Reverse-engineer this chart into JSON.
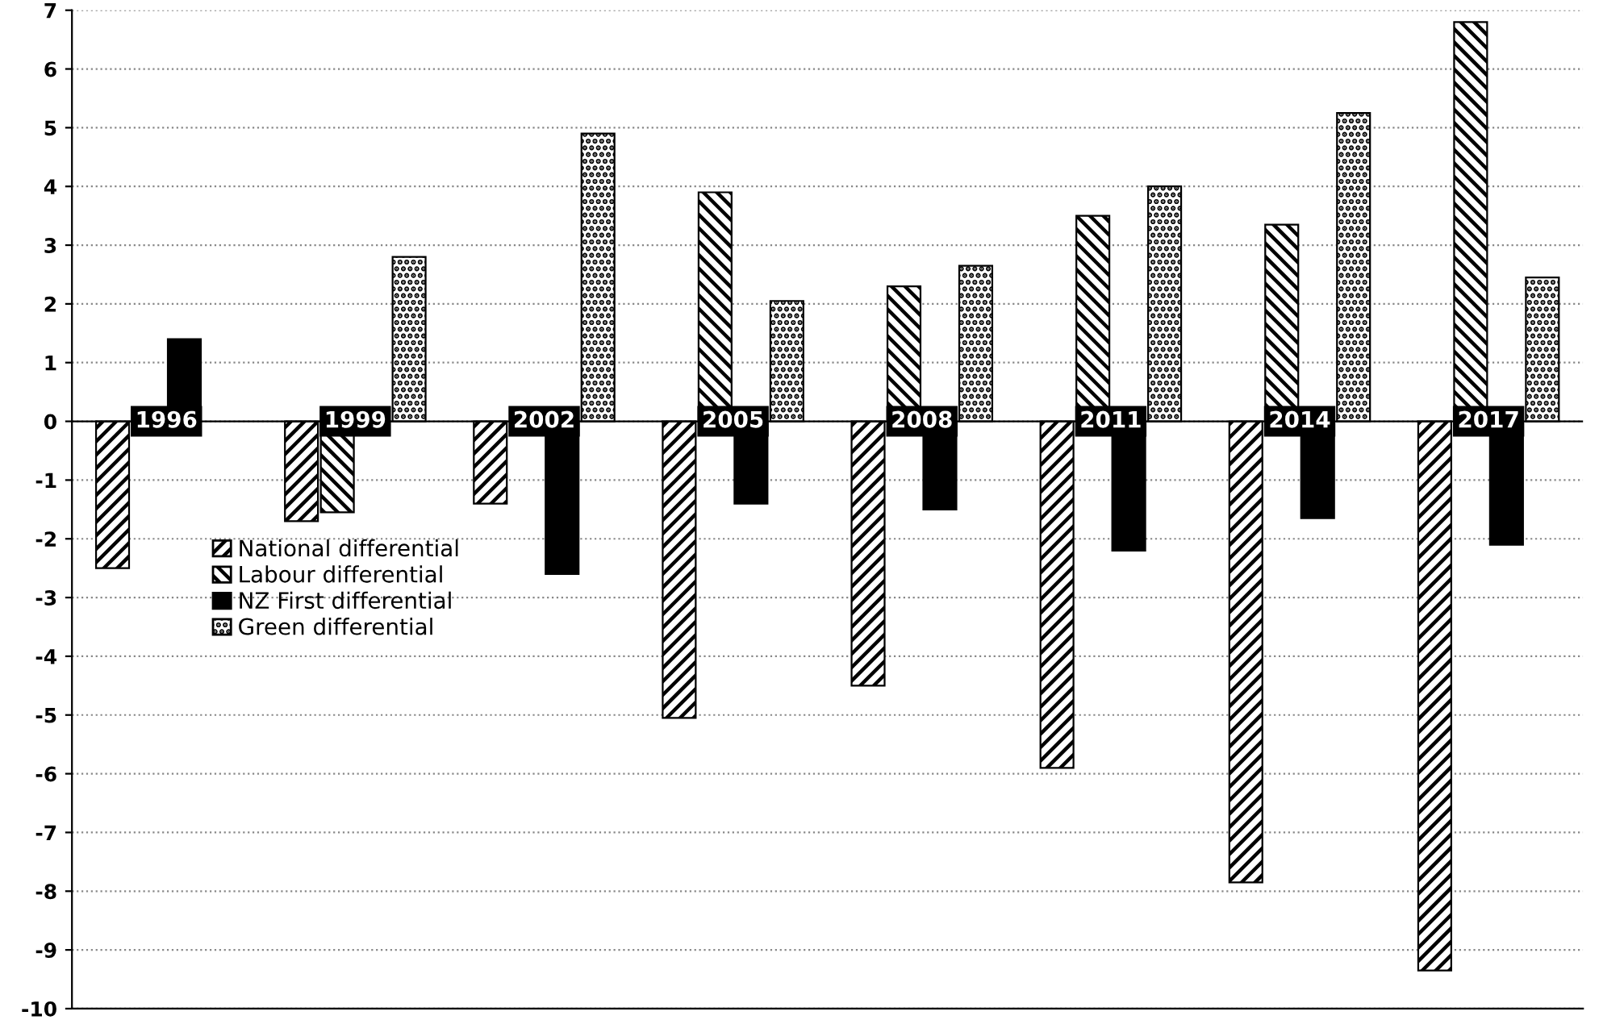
{
  "chart_data": {
    "type": "bar",
    "categories": [
      "1996",
      "1999",
      "2002",
      "2005",
      "2008",
      "2011",
      "2014",
      "2017"
    ],
    "series": [
      {
        "name": "National differential",
        "color": "#000000",
        "values": [
          -2.5,
          -1.7,
          -1.4,
          -5.05,
          -4.5,
          -5.9,
          -7.85,
          -9.35
        ]
      },
      {
        "name": "Labour differential",
        "color": "#000000",
        "values": [
          null,
          -1.55,
          null,
          3.9,
          2.3,
          3.5,
          3.35,
          6.8
        ]
      },
      {
        "name": "NZ First differential",
        "color": "#000000",
        "values": [
          1.4,
          null,
          -2.6,
          -1.4,
          -1.5,
          -2.2,
          -1.65,
          -2.1
        ]
      },
      {
        "name": "Green differential",
        "color": "#000000",
        "values": [
          null,
          2.8,
          4.9,
          2.05,
          2.65,
          4.0,
          5.25,
          2.45
        ]
      }
    ],
    "ylim": [
      -10,
      7
    ],
    "yticks": [
      -10,
      -9,
      -8,
      -7,
      -6,
      -5,
      -4,
      -3,
      -2,
      -1,
      0,
      1,
      2,
      3,
      4,
      5,
      6,
      7
    ],
    "grid": "y",
    "legend": "left"
  }
}
